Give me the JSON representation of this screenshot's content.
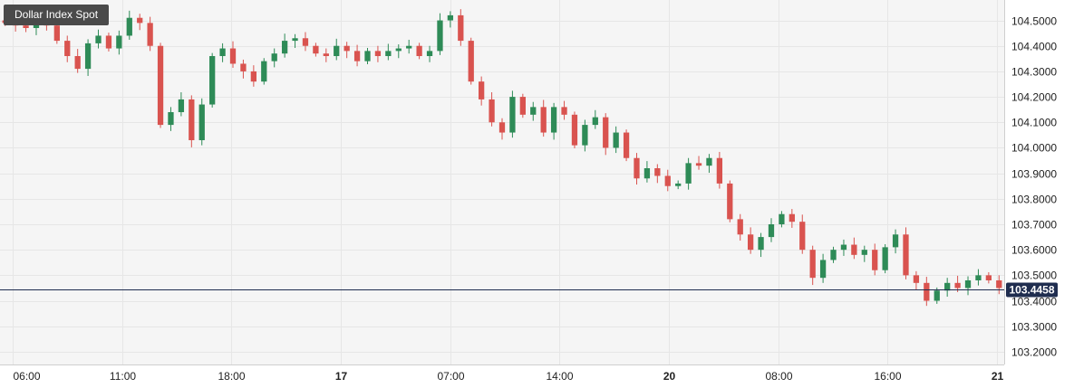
{
  "title": "Dollar Index Spot",
  "current_price_label": "103.4458",
  "colors": {
    "up": "#2e8b57",
    "down": "#d9534f",
    "price_line": "#1f2d4f",
    "grid": "#e6e6e6",
    "plot_bg": "#f5f5f5"
  },
  "chart_data": {
    "type": "candlestick",
    "ylim": [
      103.15,
      104.58
    ],
    "yticks": [
      "104.5000",
      "104.4000",
      "104.3000",
      "104.2000",
      "104.1000",
      "104.0000",
      "103.9000",
      "103.8000",
      "103.7000",
      "103.6000",
      "103.5000",
      "103.4000",
      "103.3000",
      "103.2000"
    ],
    "xticks": [
      {
        "label": "06:00",
        "bold": false
      },
      {
        "label": "11:00",
        "bold": false
      },
      {
        "label": "18:00",
        "bold": false
      },
      {
        "label": "17",
        "bold": true
      },
      {
        "label": "07:00",
        "bold": false
      },
      {
        "label": "14:00",
        "bold": false
      },
      {
        "label": "20",
        "bold": true
      },
      {
        "label": "08:00",
        "bold": false
      },
      {
        "label": "16:00",
        "bold": false
      },
      {
        "label": "21",
        "bold": true
      }
    ],
    "current_price": 103.4458,
    "closes": [
      104.49,
      104.48,
      104.47,
      104.5,
      104.48,
      104.42,
      104.36,
      104.31,
      104.41,
      104.44,
      104.39,
      104.44,
      104.51,
      104.49,
      104.4,
      104.09,
      104.14,
      104.19,
      104.03,
      104.17,
      104.36,
      104.39,
      104.33,
      104.3,
      104.26,
      104.34,
      104.37,
      104.42,
      104.43,
      104.4,
      104.37,
      104.36,
      104.4,
      104.38,
      104.34,
      104.38,
      104.36,
      104.38,
      104.39,
      104.4,
      104.36,
      104.38,
      104.5,
      104.52,
      104.42,
      104.26,
      104.19,
      104.1,
      104.06,
      104.2,
      104.13,
      104.16,
      104.06,
      104.16,
      104.13,
      104.01,
      104.09,
      104.12,
      104.0,
      104.06,
      103.96,
      103.88,
      103.92,
      103.89,
      103.85,
      103.86,
      103.94,
      103.93,
      103.96,
      103.86,
      103.72,
      103.66,
      103.6,
      103.65,
      103.7,
      103.74,
      103.71,
      103.6,
      103.49,
      103.56,
      103.6,
      103.62,
      103.58,
      103.6,
      103.52,
      103.61,
      103.66,
      103.5,
      103.47,
      103.4,
      103.44,
      103.47,
      103.45,
      103.48,
      103.5,
      103.48,
      103.45
    ]
  }
}
